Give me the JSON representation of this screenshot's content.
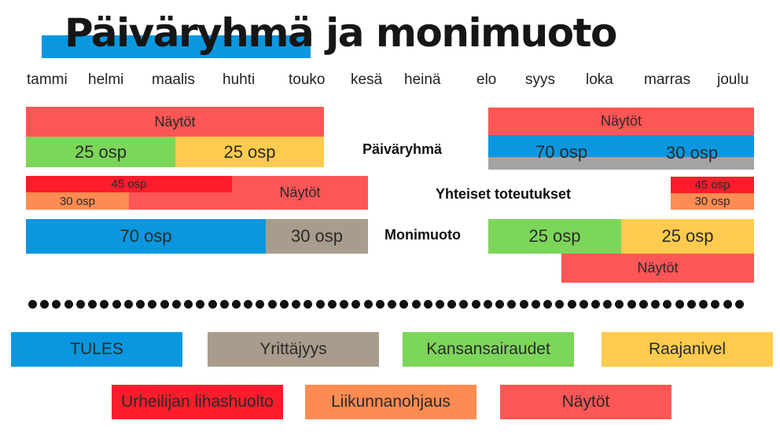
{
  "title": "Päiväryhmä ja monimuoto",
  "months": [
    "tammi",
    "helmi",
    "maalis",
    "huhti",
    "touko",
    "kesä",
    "heinä",
    "elo",
    "syys",
    "loka",
    "marras",
    "joulu"
  ],
  "colors": {
    "tules": "#0a97df",
    "yrittajyys": "#a89c8c",
    "kansansairaudet": "#7cd65a",
    "raajanivel": "#fecb4e",
    "urheilijan_lihashuolto": "#fc1c2c",
    "liikunnanohjaus": "#fd8c52",
    "naytot": "#fd5656",
    "gray": "#a3a3a3"
  },
  "rows": {
    "paivaryhma": "Päiväryhmä",
    "yhteiset": "Yhteiset toteutukset",
    "monimuoto": "Monimuoto"
  },
  "bars": {
    "naytot": "Näytöt",
    "osp25": "25 osp",
    "osp70": "70 osp",
    "osp30": "30 osp",
    "osp45": "45 osp"
  },
  "legend": [
    "TULES",
    "Yrittäjyys",
    "Kansansairaudet",
    "Raajanivel",
    "Urheilijan lihashuolto",
    "Liikunnanohjaus",
    "Näytöt"
  ]
}
